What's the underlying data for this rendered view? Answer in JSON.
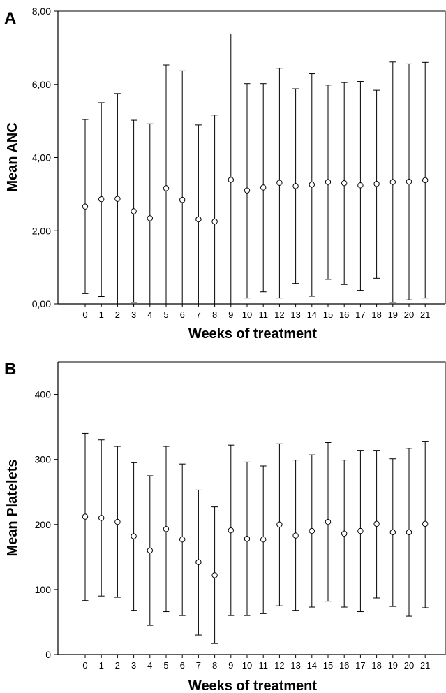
{
  "chart_data": [
    {
      "panel_label": "A",
      "type": "scatter",
      "subtype": "mean-with-error-bars",
      "xlabel": "Weeks of treatment",
      "ylabel": "Mean ANC",
      "ylim": [
        0,
        8
      ],
      "yticks": [
        0,
        2,
        4,
        6,
        8
      ],
      "ytick_labels": [
        "0,00",
        "2,00",
        "4,00",
        "6,00",
        "8,00"
      ],
      "x": [
        0,
        1,
        2,
        3,
        4,
        5,
        6,
        7,
        8,
        9,
        10,
        11,
        12,
        13,
        14,
        15,
        16,
        17,
        18,
        19,
        20,
        21
      ],
      "xtick_labels": [
        "0",
        "1",
        "2",
        "3",
        "4",
        "5",
        "6",
        "7",
        "8",
        "9",
        "10",
        "11",
        "12",
        "13",
        "14",
        "15",
        "16",
        "17",
        "18",
        "19",
        "20",
        "21"
      ],
      "mean": [
        2.66,
        2.86,
        2.87,
        2.53,
        2.34,
        3.16,
        2.84,
        2.31,
        2.25,
        3.39,
        3.1,
        3.18,
        3.31,
        3.22,
        3.26,
        3.33,
        3.3,
        3.24,
        3.28,
        3.33,
        3.34,
        3.38
      ],
      "upper": [
        5.04,
        5.5,
        5.75,
        5.02,
        4.92,
        6.53,
        6.37,
        4.89,
        5.16,
        7.38,
        6.02,
        6.02,
        6.44,
        5.88,
        6.29,
        5.98,
        6.05,
        6.08,
        5.84,
        6.61,
        6.56,
        6.6
      ],
      "lower": [
        0.28,
        0.2,
        0.0,
        0.04,
        0.0,
        0.0,
        0.0,
        0.0,
        0.0,
        0.0,
        0.16,
        0.33,
        0.16,
        0.56,
        0.21,
        0.67,
        0.53,
        0.37,
        0.7,
        0.04,
        0.11,
        0.16
      ],
      "grid": false,
      "legend": "none"
    },
    {
      "panel_label": "B",
      "type": "scatter",
      "subtype": "mean-with-error-bars",
      "xlabel": "Weeks of treatment",
      "ylabel": "Mean Platelets",
      "ylim": [
        0,
        450
      ],
      "yticks": [
        0,
        100,
        200,
        300,
        400
      ],
      "ytick_labels": [
        "0",
        "100",
        "200",
        "300",
        "400"
      ],
      "x": [
        0,
        1,
        2,
        3,
        4,
        5,
        6,
        7,
        8,
        9,
        10,
        11,
        12,
        13,
        14,
        15,
        16,
        17,
        18,
        19,
        20,
        21
      ],
      "xtick_labels": [
        "0",
        "1",
        "2",
        "3",
        "4",
        "5",
        "6",
        "7",
        "8",
        "9",
        "10",
        "11",
        "12",
        "13",
        "14",
        "15",
        "16",
        "17",
        "18",
        "19",
        "20",
        "21"
      ],
      "mean": [
        212,
        210,
        204,
        182,
        160,
        193,
        177,
        142,
        122,
        191,
        178,
        177,
        200,
        183,
        190,
        204,
        186,
        190,
        201,
        188,
        188,
        201
      ],
      "upper": [
        340,
        330,
        320,
        295,
        275,
        320,
        293,
        253,
        227,
        322,
        296,
        290,
        324,
        299,
        307,
        326,
        299,
        314,
        314,
        301,
        317,
        328
      ],
      "lower": [
        83,
        90,
        88,
        68,
        45,
        66,
        60,
        30,
        17,
        60,
        60,
        63,
        75,
        68,
        73,
        82,
        73,
        66,
        87,
        74,
        59,
        72
      ],
      "grid": false,
      "legend": "none"
    }
  ]
}
